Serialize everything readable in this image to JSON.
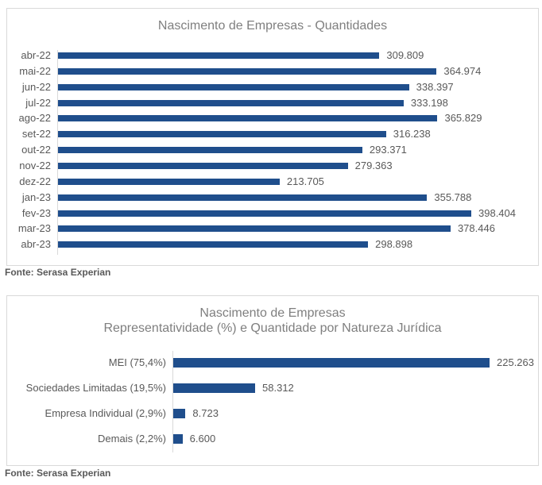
{
  "chart_data": [
    {
      "type": "bar",
      "orientation": "horizontal",
      "title": "Nascimento de Empresas - Quantidades",
      "categories": [
        "abr-22",
        "mai-22",
        "jun-22",
        "jul-22",
        "ago-22",
        "set-22",
        "out-22",
        "nov-22",
        "dez-22",
        "jan-23",
        "fev-23",
        "mar-23",
        "abr-23"
      ],
      "values": [
        309809,
        364974,
        338397,
        333198,
        365829,
        316238,
        293371,
        279363,
        213705,
        355788,
        398404,
        378446,
        298898
      ],
      "labels": [
        "309.809",
        "364.974",
        "338.397",
        "333.198",
        "365.829",
        "316.238",
        "293.371",
        "279.363",
        "213.705",
        "355.788",
        "398.404",
        "378.446",
        "298.898"
      ],
      "color": "#1f4e8c",
      "grid": false,
      "source": "Fonte: Serasa Experian"
    },
    {
      "type": "bar",
      "orientation": "horizontal",
      "title": "Nascimento de Empresas",
      "subtitle": "Representatividade (%) e Quantidade por Natureza Jurídica",
      "categories": [
        "MEI (75,4%)",
        "Sociedades Limitadas (19,5%)",
        "Empresa Individual (2,9%)",
        "Demais (2,2%)"
      ],
      "values": [
        225263,
        58312,
        8723,
        6600
      ],
      "labels": [
        "225.263",
        "58.312",
        "8.723",
        "6.600"
      ],
      "color": "#1f4e8c",
      "grid": false,
      "source": "Fonte: Serasa Experian"
    }
  ]
}
